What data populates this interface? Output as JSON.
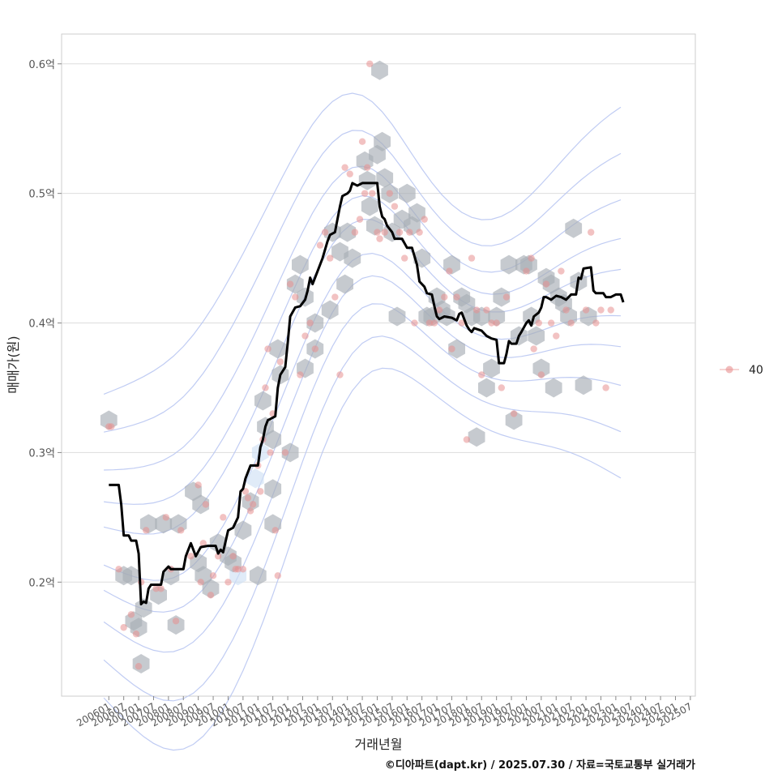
{
  "chart_data": {
    "type": "scatter",
    "xlabel": "거래년월",
    "ylabel": "매매가(원)",
    "x_tick_labels": [
      "200601",
      "200607",
      "200701",
      "200707",
      "200801",
      "200807",
      "200901",
      "200907",
      "201001",
      "201007",
      "201101",
      "201107",
      "201201",
      "201207",
      "201301",
      "201307",
      "201401",
      "201407",
      "201501",
      "201507",
      "201601",
      "201607",
      "201701",
      "201707",
      "201801",
      "201807",
      "201901",
      "201907",
      "202001",
      "202007",
      "202101",
      "202107",
      "202201",
      "202207",
      "202301",
      "202307",
      "202401",
      "202407",
      "202501",
      "202507"
    ],
    "y_ticks": [
      0.2,
      0.3,
      0.4,
      0.5,
      0.6
    ],
    "y_tick_labels": [
      "0.2억",
      "0.3억",
      "0.4억",
      "0.5억",
      "0.6억"
    ],
    "ylim": [
      0.112,
      0.623
    ],
    "xlim_months": [
      -19,
      236
    ],
    "grid": "horizontal",
    "legend": {
      "position": "right",
      "label": "40"
    },
    "point_color": "#e8908f",
    "hex_color": "#a8adb6",
    "trend_color": "#000000",
    "contour_color": "#b9c7f2",
    "points": [
      [
        2006.01,
        0.32
      ],
      [
        2006.02,
        0.32
      ],
      [
        2006.05,
        0.21
      ],
      [
        2006.07,
        0.165
      ],
      [
        2006.1,
        0.175
      ],
      [
        2006.12,
        0.16
      ],
      [
        2007.01,
        0.135
      ],
      [
        2007.02,
        0.2
      ],
      [
        2007.04,
        0.24
      ],
      [
        2007.08,
        0.195
      ],
      [
        2007.1,
        0.195
      ],
      [
        2007.12,
        0.25
      ],
      [
        2008.02,
        0.21
      ],
      [
        2008.04,
        0.17
      ],
      [
        2008.06,
        0.24
      ],
      [
        2008.1,
        0.22
      ],
      [
        2009.01,
        0.275
      ],
      [
        2009.02,
        0.2
      ],
      [
        2009.03,
        0.23
      ],
      [
        2009.04,
        0.26
      ],
      [
        2009.06,
        0.19
      ],
      [
        2009.07,
        0.205
      ],
      [
        2009.09,
        0.22
      ],
      [
        2009.11,
        0.25
      ],
      [
        2010.01,
        0.2
      ],
      [
        2010.03,
        0.22
      ],
      [
        2010.04,
        0.21
      ],
      [
        2010.05,
        0.21
      ],
      [
        2010.07,
        0.21
      ],
      [
        2010.08,
        0.27
      ],
      [
        2010.09,
        0.265
      ],
      [
        2010.1,
        0.255
      ],
      [
        2010.11,
        0.26
      ],
      [
        2011.01,
        0.29
      ],
      [
        2011.02,
        0.27
      ],
      [
        2011.03,
        0.31
      ],
      [
        2011.04,
        0.35
      ],
      [
        2011.05,
        0.38
      ],
      [
        2011.06,
        0.3
      ],
      [
        2011.07,
        0.33
      ],
      [
        2011.08,
        0.24
      ],
      [
        2011.09,
        0.205
      ],
      [
        2011.1,
        0.37
      ],
      [
        2011.12,
        0.3
      ],
      [
        2012.02,
        0.43
      ],
      [
        2012.04,
        0.42
      ],
      [
        2012.06,
        0.36
      ],
      [
        2012.08,
        0.39
      ],
      [
        2012.1,
        0.4
      ],
      [
        2012.12,
        0.38
      ],
      [
        2013.02,
        0.46
      ],
      [
        2013.04,
        0.47
      ],
      [
        2013.06,
        0.45
      ],
      [
        2013.08,
        0.42
      ],
      [
        2013.1,
        0.36
      ],
      [
        2013.12,
        0.52
      ],
      [
        2014.02,
        0.515
      ],
      [
        2014.04,
        0.47
      ],
      [
        2014.06,
        0.48
      ],
      [
        2014.07,
        0.54
      ],
      [
        2014.08,
        0.5
      ],
      [
        2014.09,
        0.52
      ],
      [
        2014.1,
        0.6
      ],
      [
        2014.11,
        0.5
      ],
      [
        2015.01,
        0.47
      ],
      [
        2015.02,
        0.465
      ],
      [
        2015.04,
        0.47
      ],
      [
        2015.06,
        0.5
      ],
      [
        2015.08,
        0.49
      ],
      [
        2015.1,
        0.47
      ],
      [
        2015.12,
        0.45
      ],
      [
        2016.02,
        0.47
      ],
      [
        2016.04,
        0.4
      ],
      [
        2016.06,
        0.47
      ],
      [
        2016.08,
        0.48
      ],
      [
        2016.1,
        0.4
      ],
      [
        2016.12,
        0.4
      ],
      [
        2017.02,
        0.41
      ],
      [
        2017.04,
        0.42
      ],
      [
        2017.06,
        0.44
      ],
      [
        2017.07,
        0.38
      ],
      [
        2017.09,
        0.42
      ],
      [
        2017.11,
        0.4
      ],
      [
        2018.01,
        0.31
      ],
      [
        2018.03,
        0.45
      ],
      [
        2018.05,
        0.41
      ],
      [
        2018.07,
        0.36
      ],
      [
        2018.09,
        0.41
      ],
      [
        2018.11,
        0.4
      ],
      [
        2019.01,
        0.4
      ],
      [
        2019.03,
        0.35
      ],
      [
        2019.05,
        0.42
      ],
      [
        2019.08,
        0.33
      ],
      [
        2020.01,
        0.44
      ],
      [
        2020.03,
        0.45
      ],
      [
        2020.04,
        0.38
      ],
      [
        2020.06,
        0.4
      ],
      [
        2020.07,
        0.36
      ],
      [
        2020.09,
        0.43
      ],
      [
        2020.11,
        0.4
      ],
      [
        2021.01,
        0.39
      ],
      [
        2021.03,
        0.44
      ],
      [
        2021.05,
        0.41
      ],
      [
        2021.07,
        0.4
      ],
      [
        2022.01,
        0.41
      ],
      [
        2022.03,
        0.47
      ],
      [
        2022.05,
        0.4
      ],
      [
        2022.07,
        0.41
      ],
      [
        2022.09,
        0.35
      ],
      [
        2022.11,
        0.41
      ]
    ],
    "hexbins": [
      [
        2006.01,
        0.325,
        1
      ],
      [
        2006.07,
        0.205,
        1
      ],
      [
        2006.1,
        0.205,
        1
      ],
      [
        2006.11,
        0.17,
        1
      ],
      [
        2007.01,
        0.165,
        1
      ],
      [
        2007.03,
        0.18,
        1
      ],
      [
        2007.02,
        0.137,
        1
      ],
      [
        2007.05,
        0.245,
        1
      ],
      [
        2007.11,
        0.245,
        1
      ],
      [
        2008.05,
        0.245,
        1
      ],
      [
        2007.09,
        0.19,
        1
      ],
      [
        2008.02,
        0.205,
        1
      ],
      [
        2008.04,
        0.167,
        1
      ],
      [
        2008.11,
        0.27,
        1
      ],
      [
        2009.02,
        0.26,
        1
      ],
      [
        2009.01,
        0.215,
        1
      ],
      [
        2009.06,
        0.195,
        1
      ],
      [
        2009.09,
        0.23,
        1
      ],
      [
        2009.03,
        0.205,
        1
      ],
      [
        2010.01,
        0.22,
        1
      ],
      [
        2010.05,
        0.205,
        2
      ],
      [
        2010.03,
        0.215,
        1
      ],
      [
        2010.07,
        0.24,
        1
      ],
      [
        2010.1,
        0.262,
        1
      ],
      [
        2010.12,
        0.28,
        2
      ],
      [
        2011.02,
        0.3,
        2
      ],
      [
        2011.04,
        0.32,
        1
      ],
      [
        2011.03,
        0.34,
        1
      ],
      [
        2011.07,
        0.272,
        1
      ],
      [
        2011.07,
        0.31,
        1
      ],
      [
        2011.07,
        0.245,
        1
      ],
      [
        2011.01,
        0.205,
        1
      ],
      [
        2011.09,
        0.38,
        1
      ],
      [
        2011.1,
        0.36,
        1
      ],
      [
        2012.02,
        0.3,
        1
      ],
      [
        2012.04,
        0.43,
        1
      ],
      [
        2012.06,
        0.445,
        1
      ],
      [
        2012.08,
        0.42,
        1
      ],
      [
        2012.08,
        0.365,
        1
      ],
      [
        2013.0,
        0.4,
        1
      ],
      [
        2013.0,
        0.38,
        1
      ],
      [
        2013.06,
        0.41,
        1
      ],
      [
        2013.07,
        0.47,
        1
      ],
      [
        2013.1,
        0.455,
        1
      ],
      [
        2014.0,
        0.43,
        1
      ],
      [
        2014.01,
        0.47,
        1
      ],
      [
        2014.03,
        0.45,
        1
      ],
      [
        2014.08,
        0.525,
        1
      ],
      [
        2014.09,
        0.51,
        1
      ],
      [
        2014.1,
        0.49,
        1
      ],
      [
        2015.0,
        0.475,
        1
      ],
      [
        2015.01,
        0.53,
        1
      ],
      [
        2015.02,
        0.595,
        1
      ],
      [
        2015.03,
        0.54,
        1
      ],
      [
        2015.04,
        0.512,
        1
      ],
      [
        2015.06,
        0.5,
        1
      ],
      [
        2015.07,
        0.47,
        1
      ],
      [
        2015.09,
        0.405,
        1
      ],
      [
        2015.11,
        0.48,
        1
      ],
      [
        2016.01,
        0.5,
        1
      ],
      [
        2016.03,
        0.475,
        1
      ],
      [
        2016.05,
        0.485,
        1
      ],
      [
        2016.07,
        0.45,
        1
      ],
      [
        2016.09,
        0.405,
        1
      ],
      [
        2016.11,
        0.405,
        1
      ],
      [
        2017.01,
        0.42,
        1
      ],
      [
        2017.03,
        0.41,
        1
      ],
      [
        2017.05,
        0.405,
        1
      ],
      [
        2017.07,
        0.445,
        1
      ],
      [
        2017.09,
        0.38,
        1
      ],
      [
        2017.11,
        0.42,
        1
      ],
      [
        2018.01,
        0.415,
        1
      ],
      [
        2018.03,
        0.405,
        1
      ],
      [
        2018.05,
        0.312,
        1
      ],
      [
        2018.07,
        0.405,
        1
      ],
      [
        2018.09,
        0.35,
        1
      ],
      [
        2018.11,
        0.365,
        1
      ],
      [
        2019.01,
        0.405,
        1
      ],
      [
        2019.03,
        0.42,
        1
      ],
      [
        2019.06,
        0.445,
        1
      ],
      [
        2019.08,
        0.325,
        1
      ],
      [
        2019.1,
        0.39,
        1
      ],
      [
        2019.12,
        0.445,
        1
      ],
      [
        2020.02,
        0.445,
        1
      ],
      [
        2020.03,
        0.405,
        1
      ],
      [
        2020.05,
        0.39,
        1
      ],
      [
        2020.07,
        0.365,
        1
      ],
      [
        2020.09,
        0.435,
        1
      ],
      [
        2020.11,
        0.43,
        1
      ],
      [
        2021.0,
        0.35,
        1
      ],
      [
        2021.02,
        0.42,
        1
      ],
      [
        2021.04,
        0.415,
        1
      ],
      [
        2021.06,
        0.405,
        1
      ],
      [
        2021.08,
        0.473,
        1
      ],
      [
        2021.1,
        0.432,
        1
      ],
      [
        2022.0,
        0.352,
        1
      ],
      [
        2022.02,
        0.405,
        1
      ]
    ],
    "trend_line": [
      [
        0,
        0.275
      ],
      [
        4,
        0.275
      ],
      [
        5,
        0.26
      ],
      [
        6,
        0.236
      ],
      [
        8,
        0.236
      ],
      [
        9,
        0.232
      ],
      [
        11,
        0.232
      ],
      [
        12,
        0.222
      ],
      [
        13,
        0.183
      ],
      [
        14,
        0.185
      ],
      [
        15,
        0.184
      ],
      [
        16,
        0.195
      ],
      [
        17,
        0.198
      ],
      [
        21,
        0.198
      ],
      [
        22,
        0.208
      ],
      [
        24,
        0.212
      ],
      [
        25,
        0.21
      ],
      [
        30,
        0.21
      ],
      [
        31,
        0.22
      ],
      [
        33,
        0.23
      ],
      [
        35,
        0.22
      ],
      [
        37,
        0.227
      ],
      [
        40,
        0.228
      ],
      [
        43,
        0.228
      ],
      [
        44,
        0.222
      ],
      [
        45,
        0.225
      ],
      [
        46,
        0.223
      ],
      [
        48,
        0.24
      ],
      [
        50,
        0.242
      ],
      [
        52,
        0.25
      ],
      [
        53,
        0.27
      ],
      [
        54,
        0.272
      ],
      [
        55,
        0.28
      ],
      [
        57,
        0.29
      ],
      [
        60,
        0.29
      ],
      [
        61,
        0.304
      ],
      [
        62,
        0.31
      ],
      [
        63,
        0.32
      ],
      [
        64,
        0.325
      ],
      [
        65,
        0.326
      ],
      [
        67,
        0.328
      ],
      [
        68,
        0.35
      ],
      [
        69,
        0.36
      ],
      [
        71,
        0.366
      ],
      [
        72,
        0.385
      ],
      [
        73,
        0.405
      ],
      [
        75,
        0.412
      ],
      [
        77,
        0.413
      ],
      [
        79,
        0.418
      ],
      [
        80,
        0.425
      ],
      [
        81,
        0.435
      ],
      [
        82,
        0.43
      ],
      [
        84,
        0.44
      ],
      [
        86,
        0.45
      ],
      [
        88,
        0.463
      ],
      [
        89,
        0.468
      ],
      [
        91,
        0.47
      ],
      [
        92,
        0.48
      ],
      [
        93,
        0.49
      ],
      [
        94,
        0.498
      ],
      [
        96,
        0.5
      ],
      [
        97,
        0.502
      ],
      [
        98,
        0.508
      ],
      [
        100,
        0.506
      ],
      [
        102,
        0.508
      ],
      [
        108,
        0.508
      ],
      [
        109,
        0.49
      ],
      [
        110,
        0.482
      ],
      [
        111,
        0.48
      ],
      [
        112,
        0.475
      ],
      [
        114,
        0.47
      ],
      [
        115,
        0.465
      ],
      [
        118,
        0.465
      ],
      [
        120,
        0.458
      ],
      [
        122,
        0.458
      ],
      [
        124,
        0.445
      ],
      [
        125,
        0.432
      ],
      [
        127,
        0.428
      ],
      [
        128,
        0.423
      ],
      [
        130,
        0.422
      ],
      [
        131,
        0.413
      ],
      [
        132,
        0.405
      ],
      [
        133,
        0.403
      ],
      [
        135,
        0.405
      ],
      [
        138,
        0.404
      ],
      [
        140,
        0.402
      ],
      [
        141,
        0.407
      ],
      [
        142,
        0.408
      ],
      [
        144,
        0.398
      ],
      [
        145,
        0.395
      ],
      [
        146,
        0.393
      ],
      [
        147,
        0.396
      ],
      [
        150,
        0.394
      ],
      [
        152,
        0.39
      ],
      [
        154,
        0.388
      ],
      [
        156,
        0.387
      ],
      [
        157,
        0.369
      ],
      [
        159,
        0.369
      ],
      [
        160,
        0.376
      ],
      [
        161,
        0.386
      ],
      [
        162,
        0.384
      ],
      [
        164,
        0.384
      ],
      [
        165,
        0.39
      ],
      [
        166,
        0.393
      ],
      [
        168,
        0.4
      ],
      [
        169,
        0.402
      ],
      [
        170,
        0.398
      ],
      [
        171,
        0.405
      ],
      [
        173,
        0.408
      ],
      [
        174,
        0.412
      ],
      [
        175,
        0.42
      ],
      [
        176,
        0.42
      ],
      [
        178,
        0.418
      ],
      [
        180,
        0.421
      ],
      [
        182,
        0.42
      ],
      [
        184,
        0.418
      ],
      [
        186,
        0.422
      ],
      [
        188,
        0.422
      ],
      [
        189,
        0.435
      ],
      [
        190,
        0.434
      ],
      [
        191,
        0.442
      ],
      [
        194,
        0.443
      ],
      [
        195,
        0.425
      ],
      [
        196,
        0.423
      ],
      [
        199,
        0.423
      ],
      [
        200,
        0.42
      ],
      [
        202,
        0.42
      ],
      [
        204,
        0.422
      ],
      [
        206,
        0.422
      ],
      [
        207,
        0.416
      ]
    ]
  },
  "caption": "©디아파트(dapt.kr) / 2025.07.30 / 자료=국토교통부 실거래가"
}
